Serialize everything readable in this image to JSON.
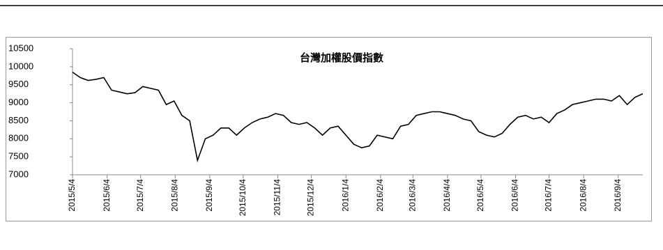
{
  "chart_data": {
    "type": "line",
    "title": "台灣加權股價指數",
    "x": [
      "2015/5/4",
      "2015/5/11",
      "2015/5/18",
      "2015/5/25",
      "2015/6/1",
      "2015/6/8",
      "2015/6/15",
      "2015/6/22",
      "2015/6/29",
      "2015/7/6",
      "2015/7/13",
      "2015/7/20",
      "2015/7/27",
      "2015/8/3",
      "2015/8/10",
      "2015/8/17",
      "2015/8/24",
      "2015/8/31",
      "2015/9/7",
      "2015/9/14",
      "2015/9/21",
      "2015/9/28",
      "2015/10/5",
      "2015/10/12",
      "2015/10/19",
      "2015/10/26",
      "2015/11/2",
      "2015/11/9",
      "2015/11/16",
      "2015/11/23",
      "2015/11/30",
      "2015/12/7",
      "2015/12/14",
      "2015/12/21",
      "2015/12/28",
      "2016/1/4",
      "2016/1/11",
      "2016/1/18",
      "2016/1/25",
      "2016/2/1",
      "2016/2/15",
      "2016/2/22",
      "2016/2/29",
      "2016/3/7",
      "2016/3/14",
      "2016/3/21",
      "2016/3/28",
      "2016/4/4",
      "2016/4/11",
      "2016/4/18",
      "2016/4/25",
      "2016/5/2",
      "2016/5/9",
      "2016/5/16",
      "2016/5/23",
      "2016/5/30",
      "2016/6/6",
      "2016/6/13",
      "2016/6/20",
      "2016/6/27",
      "2016/7/4",
      "2016/7/11",
      "2016/7/18",
      "2016/7/25",
      "2016/8/1",
      "2016/8/8",
      "2016/8/15",
      "2016/8/22",
      "2016/8/29",
      "2016/9/5",
      "2016/9/12",
      "2016/9/19",
      "2016/9/26"
    ],
    "series": [
      {
        "name": "台灣加權股價指數",
        "color": "#000000",
        "values": [
          9850,
          9700,
          9620,
          9650,
          9700,
          9350,
          9300,
          9250,
          9280,
          9450,
          9400,
          9350,
          8950,
          9050,
          8650,
          8500,
          7400,
          8000,
          8100,
          8300,
          8300,
          8100,
          8300,
          8450,
          8550,
          8600,
          8700,
          8650,
          8450,
          8400,
          8450,
          8300,
          8100,
          8300,
          8350,
          8100,
          7850,
          7750,
          7800,
          8100,
          8000,
          8350,
          8400,
          8650,
          8700,
          8750,
          8750,
          8700,
          8650,
          8550,
          8500,
          8200,
          8100,
          8050,
          8150,
          8400,
          8600,
          8650,
          8550,
          8600,
          8450,
          8700,
          8800,
          8950,
          9000,
          9050,
          9100,
          9100,
          9050,
          9200,
          8950,
          9150,
          9250
        ]
      }
    ],
    "xlim": [
      "2015/5/4",
      "2016/9/26"
    ],
    "xticks": [
      "2015/5/4",
      "2015/6/4",
      "2015/7/4",
      "2015/8/4",
      "2015/9/4",
      "2015/10/4",
      "2015/11/4",
      "2015/12/4",
      "2016/1/4",
      "2016/2/4",
      "2016/3/4",
      "2016/4/4",
      "2016/5/4",
      "2016/6/4",
      "2016/7/4",
      "2016/8/4",
      "2016/9/4"
    ],
    "ylim": [
      7000,
      10500
    ],
    "yticks": [
      7000,
      7500,
      8000,
      8500,
      9000,
      9500,
      10000,
      10500
    ],
    "grid": false
  }
}
